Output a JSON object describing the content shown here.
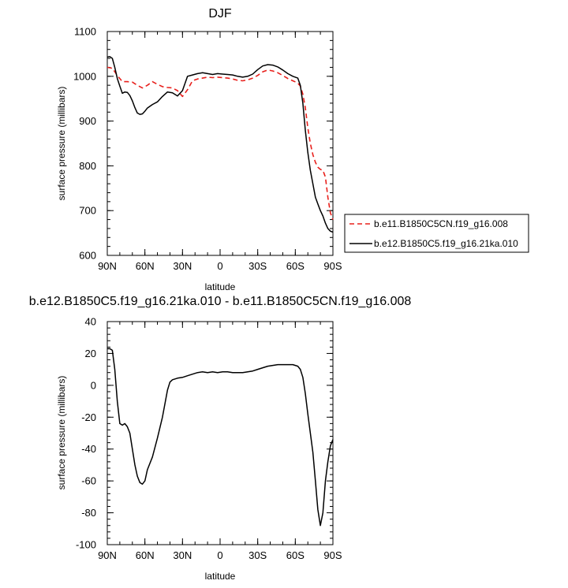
{
  "chart_data": [
    {
      "type": "line",
      "title": "DJF",
      "xlabel": "latitude",
      "ylabel": "surface pressure (millibars)",
      "xlim": [
        90,
        -90
      ],
      "ylim": [
        600,
        1100
      ],
      "x_ticks": [
        {
          "value": 90,
          "label": "90N"
        },
        {
          "value": 60,
          "label": "60N"
        },
        {
          "value": 30,
          "label": "30N"
        },
        {
          "value": 0,
          "label": "0"
        },
        {
          "value": -30,
          "label": "30S"
        },
        {
          "value": -60,
          "label": "60S"
        },
        {
          "value": -90,
          "label": "90S"
        }
      ],
      "y_ticks": [
        600,
        700,
        800,
        900,
        1000,
        1100
      ],
      "legend_position": "right",
      "series": [
        {
          "name": "b.e11.B1850C5CN.f19_g16.008",
          "color": "#e8201c",
          "dash": "dashed",
          "x": [
            90,
            86,
            82,
            78,
            74,
            70,
            66,
            62,
            58,
            54,
            50,
            46,
            42,
            38,
            34,
            30,
            26,
            22,
            18,
            14,
            10,
            6,
            2,
            -2,
            -6,
            -10,
            -14,
            -18,
            -22,
            -26,
            -30,
            -34,
            -38,
            -42,
            -46,
            -50,
            -54,
            -58,
            -62,
            -64,
            -66,
            -68,
            -70,
            -72,
            -74,
            -76,
            -78,
            -80,
            -82,
            -84,
            -86,
            -88,
            -90
          ],
          "y": [
            1020,
            1018,
            1002,
            988,
            988,
            987,
            980,
            974,
            980,
            988,
            982,
            977,
            975,
            974,
            968,
            955,
            970,
            990,
            994,
            996,
            998,
            997,
            998,
            997,
            996,
            994,
            991,
            990,
            992,
            996,
            1002,
            1010,
            1014,
            1012,
            1008,
            1002,
            995,
            990,
            985,
            978,
            960,
            930,
            885,
            850,
            825,
            808,
            797,
            792,
            790,
            775,
            730,
            695,
            680
          ]
        },
        {
          "name": "b.e12.B1850C5.f19_g16.21ka.010",
          "color": "#000000",
          "dash": "solid",
          "x": [
            90,
            88,
            86,
            84,
            82,
            80,
            78,
            76,
            74,
            72,
            70,
            68,
            66,
            64,
            62,
            60,
            58,
            54,
            50,
            46,
            42,
            38,
            34,
            30,
            26,
            22,
            18,
            14,
            10,
            6,
            2,
            -2,
            -6,
            -10,
            -14,
            -18,
            -22,
            -26,
            -30,
            -34,
            -38,
            -42,
            -46,
            -50,
            -54,
            -58,
            -62,
            -64,
            -66,
            -68,
            -70,
            -72,
            -74,
            -76,
            -78,
            -80,
            -82,
            -84,
            -86,
            -88,
            -90
          ],
          "y": [
            1043,
            1044,
            1040,
            1020,
            995,
            978,
            962,
            965,
            964,
            957,
            945,
            930,
            918,
            915,
            916,
            922,
            929,
            937,
            943,
            955,
            965,
            963,
            956,
            968,
            1000,
            1003,
            1006,
            1008,
            1006,
            1004,
            1006,
            1005,
            1004,
            1003,
            1000,
            998,
            1000,
            1005,
            1015,
            1023,
            1026,
            1025,
            1021,
            1014,
            1006,
            1000,
            996,
            980,
            940,
            880,
            830,
            790,
            760,
            730,
            715,
            700,
            688,
            672,
            660,
            654,
            652
          ]
        }
      ]
    },
    {
      "type": "line",
      "title": "b.e12.B1850C5.f19_g16.21ka.010 - b.e11.B1850C5CN.f19_g16.008",
      "xlabel": "latitude",
      "ylabel": "surface pressure (millibars)",
      "xlim": [
        90,
        -90
      ],
      "ylim": [
        -100,
        40
      ],
      "x_ticks": [
        {
          "value": 90,
          "label": "90N"
        },
        {
          "value": 60,
          "label": "60N"
        },
        {
          "value": 30,
          "label": "30N"
        },
        {
          "value": 0,
          "label": "0"
        },
        {
          "value": -30,
          "label": "30S"
        },
        {
          "value": -60,
          "label": "60S"
        },
        {
          "value": -90,
          "label": "90S"
        }
      ],
      "y_ticks": [
        -100,
        -80,
        -60,
        -40,
        -20,
        0,
        20,
        40
      ],
      "series": [
        {
          "color": "#000000",
          "dash": "solid",
          "x": [
            90,
            88,
            86,
            84,
            82,
            80,
            78,
            76,
            74,
            72,
            70,
            68,
            66,
            64,
            62,
            60,
            58,
            54,
            50,
            46,
            42,
            40,
            38,
            36,
            34,
            30,
            26,
            22,
            18,
            14,
            10,
            6,
            2,
            -2,
            -6,
            -10,
            -14,
            -18,
            -22,
            -26,
            -30,
            -34,
            -38,
            -42,
            -46,
            -50,
            -54,
            -58,
            -62,
            -64,
            -66,
            -68,
            -70,
            -72,
            -74,
            -76,
            -78,
            -80,
            -82,
            -84,
            -86,
            -88,
            -90
          ],
          "y": [
            23,
            23,
            22,
            10,
            -10,
            -24,
            -25,
            -24,
            -26,
            -30,
            -40,
            -50,
            -57,
            -61,
            -62,
            -60,
            -53,
            -45,
            -33,
            -20,
            -3,
            2,
            3.5,
            4,
            4.5,
            5,
            6,
            7,
            8,
            8.5,
            8,
            8.5,
            8,
            8.5,
            8.5,
            8,
            8,
            8,
            8.5,
            9,
            10,
            11,
            12,
            12.5,
            13,
            13,
            13,
            13,
            12,
            10,
            5,
            -5,
            -18,
            -30,
            -42,
            -60,
            -78,
            -88,
            -80,
            -60,
            -48,
            -38,
            -34
          ]
        }
      ]
    }
  ]
}
